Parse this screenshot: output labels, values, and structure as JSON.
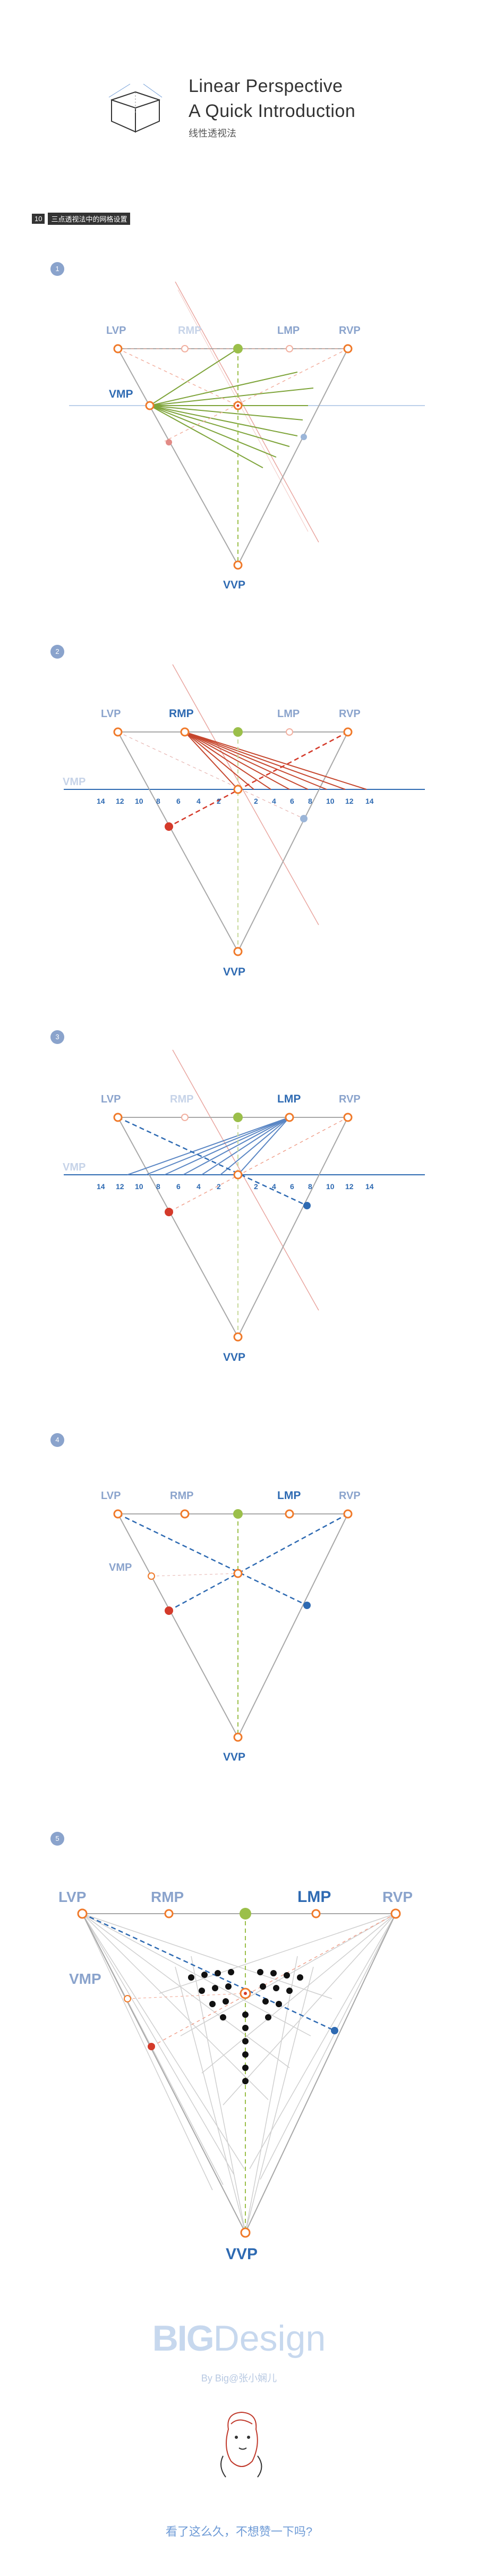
{
  "header": {
    "title_line1": "Linear Perspective",
    "title_line2": "A Quick Introduction",
    "subtitle": "线性透视法"
  },
  "section": {
    "number": "10",
    "title": "三点透视法中的网格设置"
  },
  "labels": {
    "lvp": "LVP",
    "rmp": "RMP",
    "lmp": "LMP",
    "rvp": "RVP",
    "vmp": "VMP",
    "vvp": "VVP"
  },
  "ruler_ticks": [
    "14",
    "12",
    "10",
    "8",
    "6",
    "4",
    "2",
    "2",
    "4",
    "6",
    "8",
    "10",
    "12",
    "14"
  ],
  "steps": [
    "1",
    "2",
    "3",
    "4",
    "5"
  ],
  "colors": {
    "orange": "#f07a2a",
    "green": "#7ea43a",
    "red": "#d43a2a",
    "blue": "#2e6ab2",
    "gray": "#a8a8a8",
    "lightblue": "#9bb5d8",
    "pink": "#e28b86"
  },
  "footer": {
    "logo_big": "BIG",
    "logo_design": "Design",
    "byline": "By Big@张小娴儿",
    "question": "看了这么久，不想赞一下吗?"
  }
}
